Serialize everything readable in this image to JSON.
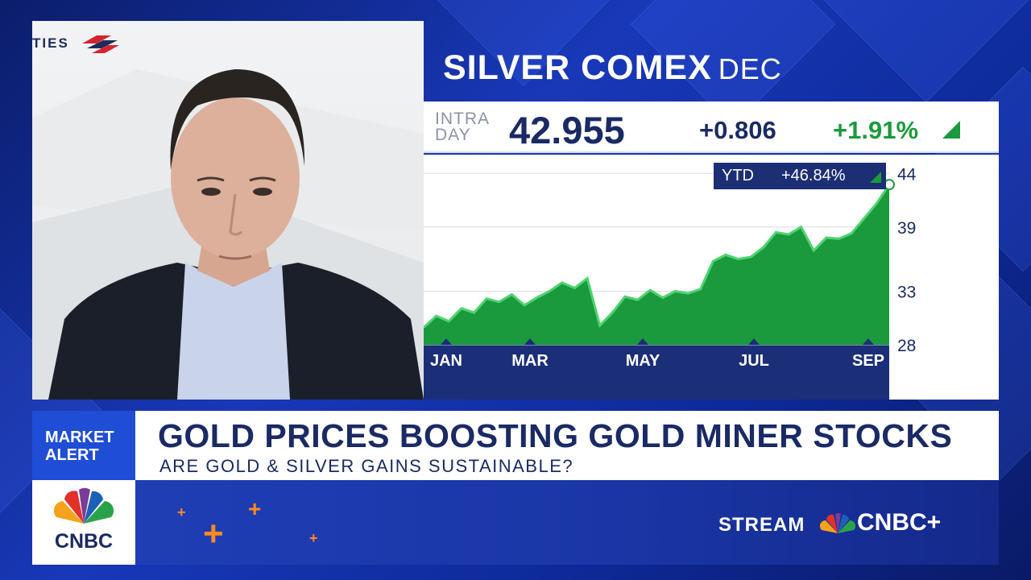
{
  "video": {
    "logo_text": "TIES"
  },
  "quote": {
    "title": "SILVER COMEX",
    "contract": "DEC",
    "intraday_line1": "INTRA",
    "intraday_line2": "DAY",
    "price": "42.955",
    "change": "+0.806",
    "change_pct": "+1.91%",
    "ytd_label": "YTD",
    "ytd_value": "+46.84%",
    "up_color": "#1a9a3c"
  },
  "chart_data": {
    "type": "area",
    "x": [
      "Jan 2",
      "Jan 9",
      "Jan 16",
      "Jan 23",
      "Jan 30",
      "Feb 6",
      "Feb 13",
      "Feb 20",
      "Feb 27",
      "Mar 6",
      "Mar 13",
      "Mar 20",
      "Mar 27",
      "Apr 3",
      "Apr 7",
      "Apr 10",
      "Apr 17",
      "Apr 24",
      "May 1",
      "May 8",
      "May 15",
      "May 22",
      "May 29",
      "Jun 5",
      "Jun 12",
      "Jun 19",
      "Jun 26",
      "Jul 3",
      "Jul 10",
      "Jul 17",
      "Jul 24",
      "Jul 31",
      "Aug 7",
      "Aug 14",
      "Aug 21",
      "Aug 28",
      "Sep 4",
      "Sep 8"
    ],
    "values": [
      29.6,
      30.7,
      30.2,
      31.4,
      31.0,
      32.3,
      32.0,
      32.7,
      31.7,
      32.4,
      33.0,
      33.8,
      33.3,
      34.2,
      29.8,
      31.0,
      32.5,
      32.2,
      33.1,
      32.4,
      33.0,
      32.8,
      33.2,
      35.8,
      36.4,
      36.0,
      36.2,
      37.1,
      38.5,
      38.3,
      39.0,
      36.8,
      38.0,
      37.9,
      38.4,
      39.8,
      41.2,
      42.955
    ],
    "xlabel_ticks": [
      "JAN",
      "MAR",
      "MAY",
      "JUL",
      "SEP"
    ],
    "y_ticks": [
      44,
      39,
      33,
      28
    ],
    "ylim": [
      28,
      45
    ],
    "color": "#1a9a3c",
    "grid": true
  },
  "market_alert": {
    "line1": "MARKET",
    "line2": "ALERT"
  },
  "headline": "GOLD PRICES BOOSTING GOLD MINER STOCKS",
  "subhead": "ARE GOLD & SILVER GAINS SUSTAINABLE?",
  "network": {
    "name": "CNBC",
    "stream_label": "STREAM",
    "stream_brand": "CNBC+"
  }
}
